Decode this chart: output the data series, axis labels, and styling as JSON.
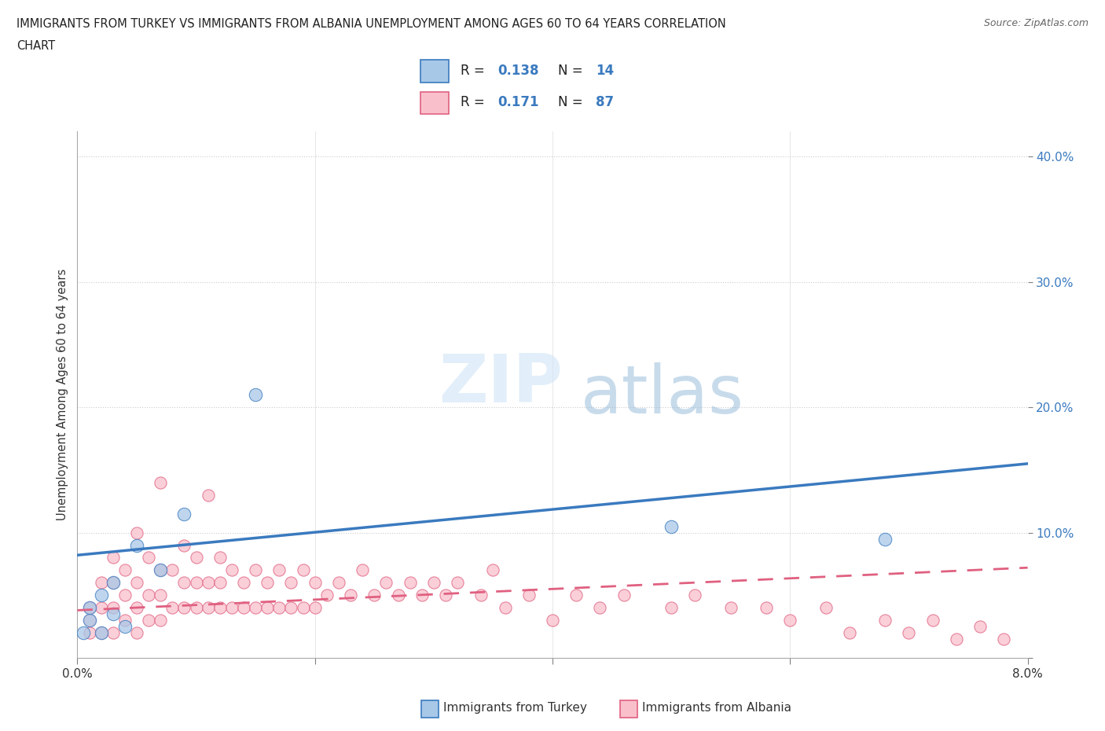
{
  "title_line1": "IMMIGRANTS FROM TURKEY VS IMMIGRANTS FROM ALBANIA UNEMPLOYMENT AMONG AGES 60 TO 64 YEARS CORRELATION",
  "title_line2": "CHART",
  "source": "Source: ZipAtlas.com",
  "ylabel": "Unemployment Among Ages 60 to 64 years",
  "xlabel_turkey": "Immigrants from Turkey",
  "xlabel_albania": "Immigrants from Albania",
  "turkey_color": "#a8c8e8",
  "albania_color": "#f9c0cc",
  "turkey_line_color": "#3a7abf",
  "albania_line_color": "#e06080",
  "turkey_R": 0.138,
  "turkey_N": 14,
  "albania_R": 0.171,
  "albania_N": 87,
  "xlim": [
    0.0,
    0.08
  ],
  "ylim": [
    0.0,
    0.42
  ],
  "x_ticks": [
    0.0,
    0.02,
    0.04,
    0.06,
    0.08
  ],
  "x_tick_labels": [
    "0.0%",
    "",
    "",
    "",
    "8.0%"
  ],
  "y_ticks": [
    0.0,
    0.1,
    0.2,
    0.3,
    0.4
  ],
  "y_tick_labels": [
    "",
    "10.0%",
    "20.0%",
    "30.0%",
    "40.0%"
  ],
  "watermark_zip": "ZIP",
  "watermark_atlas": "atlas",
  "turkey_scatter_x": [
    0.0005,
    0.001,
    0.001,
    0.002,
    0.002,
    0.003,
    0.003,
    0.004,
    0.005,
    0.007,
    0.009,
    0.015,
    0.05,
    0.068
  ],
  "turkey_scatter_y": [
    0.02,
    0.03,
    0.04,
    0.02,
    0.05,
    0.035,
    0.06,
    0.025,
    0.09,
    0.07,
    0.115,
    0.21,
    0.105,
    0.095
  ],
  "albania_scatter_x": [
    0.001,
    0.001,
    0.001,
    0.002,
    0.002,
    0.002,
    0.003,
    0.003,
    0.003,
    0.003,
    0.004,
    0.004,
    0.004,
    0.005,
    0.005,
    0.005,
    0.005,
    0.006,
    0.006,
    0.006,
    0.007,
    0.007,
    0.007,
    0.007,
    0.008,
    0.008,
    0.009,
    0.009,
    0.009,
    0.01,
    0.01,
    0.01,
    0.011,
    0.011,
    0.011,
    0.012,
    0.012,
    0.012,
    0.013,
    0.013,
    0.014,
    0.014,
    0.015,
    0.015,
    0.016,
    0.016,
    0.017,
    0.017,
    0.018,
    0.018,
    0.019,
    0.019,
    0.02,
    0.02,
    0.021,
    0.022,
    0.023,
    0.024,
    0.025,
    0.026,
    0.027,
    0.028,
    0.029,
    0.03,
    0.031,
    0.032,
    0.034,
    0.035,
    0.036,
    0.038,
    0.04,
    0.042,
    0.044,
    0.046,
    0.05,
    0.052,
    0.055,
    0.058,
    0.06,
    0.063,
    0.065,
    0.068,
    0.07,
    0.072,
    0.074,
    0.076,
    0.078
  ],
  "albania_scatter_y": [
    0.02,
    0.03,
    0.04,
    0.02,
    0.04,
    0.06,
    0.02,
    0.04,
    0.06,
    0.08,
    0.03,
    0.05,
    0.07,
    0.02,
    0.04,
    0.06,
    0.1,
    0.03,
    0.05,
    0.08,
    0.03,
    0.05,
    0.07,
    0.14,
    0.04,
    0.07,
    0.04,
    0.06,
    0.09,
    0.04,
    0.06,
    0.08,
    0.04,
    0.06,
    0.13,
    0.04,
    0.06,
    0.08,
    0.04,
    0.07,
    0.04,
    0.06,
    0.04,
    0.07,
    0.04,
    0.06,
    0.04,
    0.07,
    0.04,
    0.06,
    0.04,
    0.07,
    0.04,
    0.06,
    0.05,
    0.06,
    0.05,
    0.07,
    0.05,
    0.06,
    0.05,
    0.06,
    0.05,
    0.06,
    0.05,
    0.06,
    0.05,
    0.07,
    0.04,
    0.05,
    0.03,
    0.05,
    0.04,
    0.05,
    0.04,
    0.05,
    0.04,
    0.04,
    0.03,
    0.04,
    0.02,
    0.03,
    0.02,
    0.03,
    0.015,
    0.025,
    0.015
  ],
  "turkey_line_x0": 0.0,
  "turkey_line_x1": 0.08,
  "turkey_line_y0": 0.082,
  "turkey_line_y1": 0.155,
  "albania_line_x0": 0.0,
  "albania_line_x1": 0.08,
  "albania_line_y0": 0.038,
  "albania_line_y1": 0.072
}
